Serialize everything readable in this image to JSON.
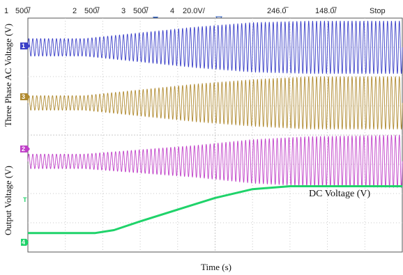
{
  "header": {
    "channels": [
      {
        "num": "1",
        "scale": "500̅/",
        "color": "#3a3fc8"
      },
      {
        "num": "2",
        "scale": "500̅/",
        "color": "#c040c8"
      },
      {
        "num": "3",
        "scale": "500̅/",
        "color": "#b08a30"
      },
      {
        "num": "4",
        "scale": "20.0V/",
        "color": "#22b855"
      }
    ],
    "time_position": "246.0̅",
    "time_scale": "148.0̅/",
    "status": "Stop"
  },
  "labels": {
    "y_upper": "Three Phase AC Voltage (V)",
    "y_lower": "Output Voltage (V)",
    "x": "Time (s)",
    "dc_annotation": "DC Voltage (V)"
  },
  "colors": {
    "ch1": "#3a3fc8",
    "ch2": "#c040c8",
    "ch3": "#b08a30",
    "ch4": "#1fd36a",
    "grid": "#c8c8c8"
  },
  "chart_data": {
    "type": "line",
    "x_range": [
      0,
      10
    ],
    "y_range": [
      0,
      8
    ],
    "grid": true,
    "series": [
      {
        "name": "1",
        "kind": "ac",
        "color": "#3a3fc8",
        "center": 7.0,
        "envelope": [
          [
            0,
            0.3
          ],
          [
            1.5,
            0.3
          ],
          [
            3,
            0.5
          ],
          [
            4.5,
            0.7
          ],
          [
            6,
            0.85
          ],
          [
            7.5,
            0.9
          ],
          [
            10,
            0.9
          ]
        ]
      },
      {
        "name": "3",
        "kind": "ac",
        "color": "#b08a30",
        "center": 5.1,
        "envelope": [
          [
            0,
            0.25
          ],
          [
            1.5,
            0.25
          ],
          [
            3,
            0.45
          ],
          [
            4.5,
            0.65
          ],
          [
            6,
            0.8
          ],
          [
            7.5,
            0.9
          ],
          [
            10,
            0.9
          ]
        ]
      },
      {
        "name": "2",
        "kind": "ac",
        "color": "#c040c8",
        "center": 3.1,
        "envelope": [
          [
            0,
            0.25
          ],
          [
            1.5,
            0.25
          ],
          [
            3,
            0.4
          ],
          [
            4.5,
            0.55
          ],
          [
            6,
            0.75
          ],
          [
            7.5,
            0.85
          ],
          [
            10,
            0.9
          ]
        ]
      },
      {
        "name": "4",
        "kind": "dc",
        "color": "#1fd36a",
        "x": [
          0,
          1.8,
          2.3,
          3.0,
          4.0,
          5.0,
          6.0,
          7.0,
          8.0,
          9.0,
          10.0
        ],
        "values": [
          0.65,
          0.65,
          0.75,
          1.05,
          1.45,
          1.85,
          2.15,
          2.25,
          2.25,
          2.25,
          2.25
        ]
      }
    ]
  }
}
